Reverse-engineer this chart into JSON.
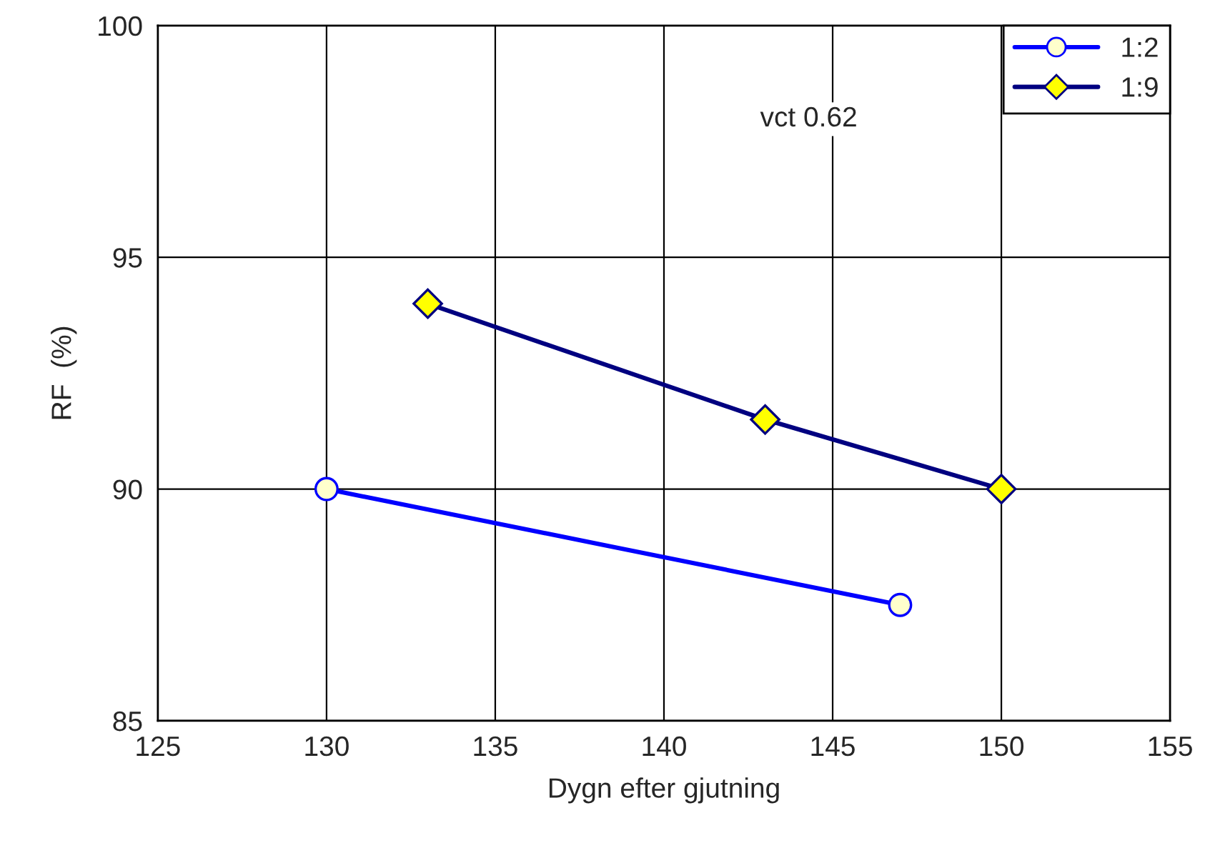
{
  "chart_data": {
    "type": "line",
    "xlabel": "Dygn efter gjutning",
    "ylabel": "RF  (%)",
    "xlim": [
      125,
      155
    ],
    "xticks": [
      125,
      130,
      135,
      140,
      145,
      150,
      155
    ],
    "ylim": [
      85,
      100
    ],
    "yticks": [
      85,
      90,
      95,
      100
    ],
    "grid": true,
    "legend": "top right",
    "annotations": [
      "vct 0.62"
    ],
    "series": [
      {
        "name": "1:2",
        "color": "#0000ff",
        "marker": "circle",
        "x": [
          130,
          147
        ],
        "values": [
          90,
          87.5
        ]
      },
      {
        "name": "1:9",
        "color": "#000080",
        "marker": "diamond",
        "x": [
          133,
          143,
          150
        ],
        "values": [
          94,
          91.5,
          90
        ]
      }
    ]
  }
}
